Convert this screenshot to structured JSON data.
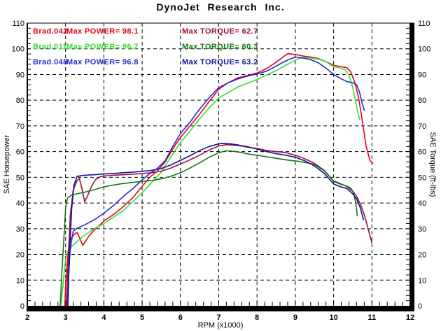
{
  "title": "DynoJet Research Inc.",
  "legend": {
    "runs": [
      {
        "file": "Brad.042",
        "power_text": "Max POWER= 98.1",
        "torque_text": "Max TORQUE= 62.7",
        "file_color": "#e8001e",
        "power_color": "#e8001e",
        "torque_color": "#9b1038"
      },
      {
        "file": "Brad.011",
        "power_text": "Max POWER= 96.7",
        "torque_text": "Max TORQUE= 60.3",
        "file_color": "#35dd35",
        "power_color": "#35dd35",
        "torque_color": "#137813"
      },
      {
        "file": "Brad.048",
        "power_text": "Max POWER= 96.8",
        "torque_text": "Max TORQUE= 63.2",
        "file_color": "#2929d6",
        "power_color": "#2929d6",
        "torque_color": "#12129b"
      }
    ]
  },
  "chart_data": {
    "type": "line",
    "title": "DynoJet Research Inc.",
    "xlabel": "RPM (x1000)",
    "ylabel_left": "SAE Horsepower",
    "ylabel_right": "SAE Torque (ft-lbs)",
    "xlim": [
      2,
      12
    ],
    "ylim": [
      0,
      110
    ],
    "x_ticks": [
      2,
      3,
      4,
      5,
      6,
      7,
      8,
      9,
      10,
      11,
      12
    ],
    "y_ticks": [
      0,
      10,
      20,
      30,
      40,
      50,
      60,
      70,
      80,
      90,
      100,
      110
    ],
    "x_minor_step": 0.2,
    "y_minor_step": 2,
    "grid": "dashed-black",
    "legend_position": "top-left-inside",
    "series": [
      {
        "name": "Brad.042 SAE Horsepower",
        "unit": "hp",
        "color": "#e8001e",
        "max": 98.1,
        "points": [
          [
            2.98,
            0
          ],
          [
            3.0,
            8
          ],
          [
            3.05,
            18
          ],
          [
            3.1,
            25
          ],
          [
            3.2,
            27.5
          ],
          [
            3.3,
            28.5
          ],
          [
            3.38,
            26
          ],
          [
            3.45,
            23.5
          ],
          [
            3.52,
            25
          ],
          [
            3.6,
            27
          ],
          [
            3.75,
            29.5
          ],
          [
            3.9,
            31.5
          ],
          [
            4.0,
            33
          ],
          [
            4.25,
            35.5
          ],
          [
            4.5,
            38.5
          ],
          [
            4.75,
            42
          ],
          [
            5.0,
            46.5
          ],
          [
            5.2,
            50
          ],
          [
            5.4,
            52.5
          ],
          [
            5.6,
            56
          ],
          [
            5.8,
            61
          ],
          [
            6.0,
            65.5
          ],
          [
            6.25,
            70
          ],
          [
            6.5,
            74.5
          ],
          [
            6.75,
            79.5
          ],
          [
            7.0,
            84.3
          ],
          [
            7.25,
            86.8
          ],
          [
            7.5,
            88.7
          ],
          [
            7.75,
            89.6
          ],
          [
            8.0,
            90.6
          ],
          [
            8.25,
            92.3
          ],
          [
            8.5,
            94.8
          ],
          [
            8.65,
            96.5
          ],
          [
            8.8,
            98.1
          ],
          [
            9.0,
            97.8
          ],
          [
            9.2,
            97.2
          ],
          [
            9.4,
            96.8
          ],
          [
            9.6,
            96.2
          ],
          [
            9.8,
            95
          ],
          [
            10.0,
            93.6
          ],
          [
            10.2,
            93
          ],
          [
            10.35,
            92.6
          ],
          [
            10.45,
            91
          ],
          [
            10.55,
            87
          ],
          [
            10.65,
            81
          ],
          [
            10.75,
            72
          ],
          [
            10.85,
            62
          ],
          [
            10.95,
            56.5
          ],
          [
            11.02,
            55.5
          ]
        ]
      },
      {
        "name": "Brad.011 SAE Horsepower",
        "unit": "hp",
        "color": "#35dd35",
        "max": 96.7,
        "points": [
          [
            2.88,
            0
          ],
          [
            2.92,
            6
          ],
          [
            2.97,
            14
          ],
          [
            3.0,
            18
          ],
          [
            3.05,
            21
          ],
          [
            3.15,
            23
          ],
          [
            3.3,
            25
          ],
          [
            3.5,
            27.5
          ],
          [
            3.75,
            30
          ],
          [
            4.0,
            32
          ],
          [
            4.25,
            34.5
          ],
          [
            4.5,
            37
          ],
          [
            4.75,
            40.5
          ],
          [
            5.0,
            44
          ],
          [
            5.25,
            48
          ],
          [
            5.5,
            52
          ],
          [
            5.75,
            58
          ],
          [
            6.0,
            63.5
          ],
          [
            6.25,
            68
          ],
          [
            6.5,
            72.7
          ],
          [
            6.75,
            77
          ],
          [
            7.0,
            80.9
          ],
          [
            7.25,
            83
          ],
          [
            7.5,
            85.2
          ],
          [
            7.75,
            86.6
          ],
          [
            8.0,
            88
          ],
          [
            8.25,
            89.8
          ],
          [
            8.5,
            91.5
          ],
          [
            8.75,
            93.6
          ],
          [
            9.0,
            95.6
          ],
          [
            9.2,
            96.7
          ],
          [
            9.4,
            96.4
          ],
          [
            9.6,
            96
          ],
          [
            9.8,
            95
          ],
          [
            10.0,
            93
          ],
          [
            10.15,
            92.6
          ],
          [
            10.3,
            91.8
          ],
          [
            10.4,
            89.8
          ],
          [
            10.48,
            86
          ],
          [
            10.55,
            81.5
          ],
          [
            10.62,
            76
          ],
          [
            10.68,
            72.5
          ]
        ]
      },
      {
        "name": "Brad.048 SAE Horsepower",
        "unit": "hp",
        "color": "#2929d6",
        "max": 96.8,
        "points": [
          [
            3.04,
            0
          ],
          [
            3.08,
            12
          ],
          [
            3.12,
            22
          ],
          [
            3.2,
            29
          ],
          [
            3.3,
            30.2
          ],
          [
            3.5,
            31.5
          ],
          [
            3.75,
            33.5
          ],
          [
            4.0,
            36
          ],
          [
            4.25,
            39
          ],
          [
            4.5,
            42.5
          ],
          [
            4.75,
            45.5
          ],
          [
            5.0,
            49
          ],
          [
            5.2,
            51.5
          ],
          [
            5.4,
            53.5
          ],
          [
            5.6,
            56.5
          ],
          [
            5.8,
            62
          ],
          [
            6.0,
            67
          ],
          [
            6.25,
            71.5
          ],
          [
            6.5,
            76.5
          ],
          [
            6.75,
            81
          ],
          [
            7.0,
            84.9
          ],
          [
            7.25,
            86.8
          ],
          [
            7.5,
            88.3
          ],
          [
            7.75,
            89.4
          ],
          [
            8.0,
            90.2
          ],
          [
            8.25,
            91.3
          ],
          [
            8.5,
            93.3
          ],
          [
            8.75,
            95.3
          ],
          [
            9.0,
            96.8
          ],
          [
            9.2,
            96.4
          ],
          [
            9.4,
            95.8
          ],
          [
            9.6,
            94.6
          ],
          [
            9.8,
            92.5
          ],
          [
            10.0,
            90
          ],
          [
            10.2,
            88.3
          ],
          [
            10.35,
            87.2
          ],
          [
            10.5,
            86.8
          ],
          [
            10.6,
            86
          ],
          [
            10.68,
            83
          ],
          [
            10.74,
            79
          ],
          [
            10.8,
            76
          ]
        ]
      },
      {
        "name": "Brad.042 SAE Torque",
        "unit": "ft-lbs",
        "color": "#9b1038",
        "max": 62.7,
        "points": [
          [
            3.02,
            0
          ],
          [
            3.06,
            15
          ],
          [
            3.12,
            35
          ],
          [
            3.2,
            45
          ],
          [
            3.3,
            48.8
          ],
          [
            3.36,
            49.5
          ],
          [
            3.42,
            46
          ],
          [
            3.5,
            40.5
          ],
          [
            3.58,
            43
          ],
          [
            3.68,
            46.5
          ],
          [
            3.78,
            49
          ],
          [
            3.9,
            50.2
          ],
          [
            4.0,
            50.5
          ],
          [
            4.25,
            50.8
          ],
          [
            4.5,
            51
          ],
          [
            4.75,
            51.2
          ],
          [
            5.0,
            51.5
          ],
          [
            5.25,
            51.8
          ],
          [
            5.5,
            52.4
          ],
          [
            5.75,
            53.6
          ],
          [
            6.0,
            55.2
          ],
          [
            6.25,
            56.8
          ],
          [
            6.5,
            58.6
          ],
          [
            6.75,
            60.6
          ],
          [
            7.0,
            62.2
          ],
          [
            7.2,
            62.7
          ],
          [
            7.4,
            62.5
          ],
          [
            7.6,
            62.2
          ],
          [
            7.8,
            61.6
          ],
          [
            8.0,
            61.2
          ],
          [
            8.25,
            60.4
          ],
          [
            8.5,
            60
          ],
          [
            8.75,
            59.6
          ],
          [
            9.0,
            58.6
          ],
          [
            9.25,
            57.2
          ],
          [
            9.5,
            55.4
          ],
          [
            9.75,
            52.8
          ],
          [
            10.0,
            48.6
          ],
          [
            10.2,
            47.4
          ],
          [
            10.35,
            46.4
          ],
          [
            10.5,
            44.6
          ],
          [
            10.6,
            42.6
          ],
          [
            10.7,
            39.5
          ],
          [
            10.8,
            35.5
          ],
          [
            10.9,
            30
          ],
          [
            11.0,
            24.5
          ]
        ]
      },
      {
        "name": "Brad.011 SAE Torque",
        "unit": "ft-lbs",
        "color": "#137813",
        "max": 60.3,
        "points": [
          [
            2.86,
            0
          ],
          [
            2.9,
            12
          ],
          [
            2.95,
            25
          ],
          [
            3.0,
            38
          ],
          [
            3.05,
            42
          ],
          [
            3.15,
            43
          ],
          [
            3.3,
            43.6
          ],
          [
            3.5,
            44.2
          ],
          [
            3.75,
            45.2
          ],
          [
            4.0,
            46.3
          ],
          [
            4.25,
            47
          ],
          [
            4.5,
            47.6
          ],
          [
            4.75,
            48
          ],
          [
            5.0,
            48.4
          ],
          [
            5.25,
            48.8
          ],
          [
            5.5,
            49.4
          ],
          [
            5.75,
            50.4
          ],
          [
            6.0,
            51.8
          ],
          [
            6.25,
            53.6
          ],
          [
            6.5,
            55.6
          ],
          [
            6.75,
            57.8
          ],
          [
            7.0,
            59.6
          ],
          [
            7.2,
            60.3
          ],
          [
            7.4,
            60.1
          ],
          [
            7.6,
            59.6
          ],
          [
            7.8,
            59
          ],
          [
            8.0,
            58.6
          ],
          [
            8.25,
            58
          ],
          [
            8.5,
            57.4
          ],
          [
            8.75,
            56.8
          ],
          [
            9.0,
            56.4
          ],
          [
            9.25,
            55.8
          ],
          [
            9.5,
            55
          ],
          [
            9.75,
            52.6
          ],
          [
            10.0,
            48.4
          ],
          [
            10.2,
            47.2
          ],
          [
            10.35,
            46.6
          ],
          [
            10.45,
            45.8
          ],
          [
            10.52,
            44
          ],
          [
            10.58,
            40
          ],
          [
            10.62,
            35
          ]
        ]
      },
      {
        "name": "Brad.048 SAE Torque",
        "unit": "ft-lbs",
        "color": "#12129b",
        "max": 63.2,
        "points": [
          [
            3.06,
            0
          ],
          [
            3.1,
            20
          ],
          [
            3.16,
            38
          ],
          [
            3.22,
            47
          ],
          [
            3.3,
            50.4
          ],
          [
            3.5,
            50.8
          ],
          [
            3.75,
            51
          ],
          [
            4.0,
            51.3
          ],
          [
            4.25,
            51.5
          ],
          [
            4.5,
            51.8
          ],
          [
            4.75,
            52
          ],
          [
            5.0,
            52.3
          ],
          [
            5.25,
            52.7
          ],
          [
            5.5,
            53.4
          ],
          [
            5.75,
            54.8
          ],
          [
            6.0,
            56.6
          ],
          [
            6.25,
            58.4
          ],
          [
            6.5,
            60.4
          ],
          [
            6.75,
            62
          ],
          [
            7.0,
            63
          ],
          [
            7.1,
            63.2
          ],
          [
            7.3,
            63
          ],
          [
            7.5,
            62.6
          ],
          [
            7.75,
            61.9
          ],
          [
            8.0,
            61
          ],
          [
            8.25,
            60
          ],
          [
            8.5,
            59.2
          ],
          [
            8.75,
            58.6
          ],
          [
            9.0,
            57.8
          ],
          [
            9.25,
            56.4
          ],
          [
            9.5,
            54.4
          ],
          [
            9.75,
            51.6
          ],
          [
            10.0,
            47.4
          ],
          [
            10.2,
            46.2
          ],
          [
            10.35,
            45.6
          ],
          [
            10.5,
            43.6
          ],
          [
            10.6,
            41.6
          ],
          [
            10.7,
            38
          ],
          [
            10.78,
            33.5
          ]
        ]
      }
    ]
  }
}
